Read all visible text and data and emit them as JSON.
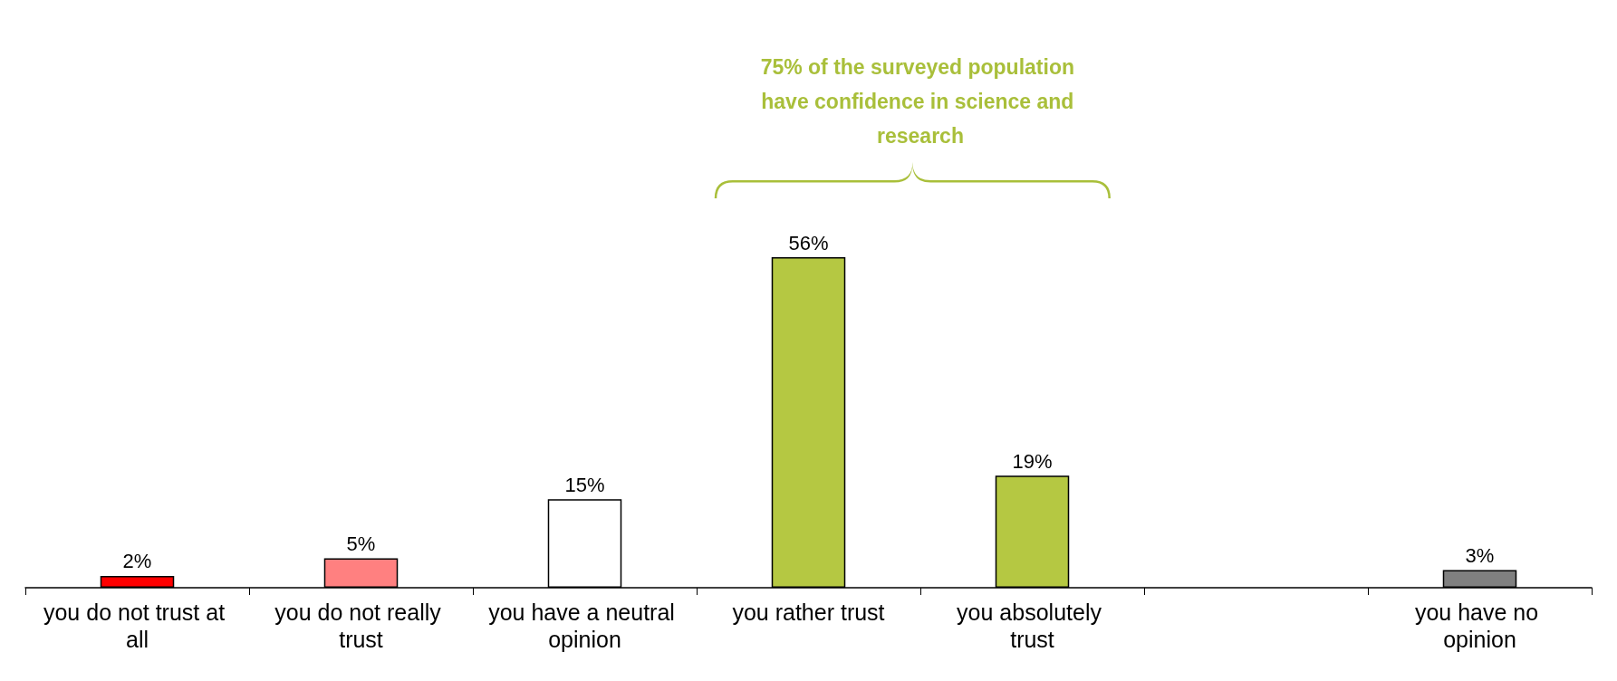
{
  "chart_data": {
    "type": "bar",
    "categories": [
      "you do not trust at all",
      "you do not really trust",
      "you have a neutral opinion",
      "you rather trust",
      "you absolutely trust",
      null,
      "you have no opinion"
    ],
    "values": [
      2,
      5,
      15,
      56,
      19,
      null,
      3
    ],
    "value_labels": [
      "2%",
      "5%",
      "15%",
      "56%",
      "19%",
      null,
      "3%"
    ],
    "colors": [
      "#ff0000",
      "#ff8080",
      "#ffffff",
      "#b5c842",
      "#b5c842",
      null,
      "#808080"
    ],
    "annotations": [
      "75% of the surveyed population have confidence in science and research"
    ]
  }
}
